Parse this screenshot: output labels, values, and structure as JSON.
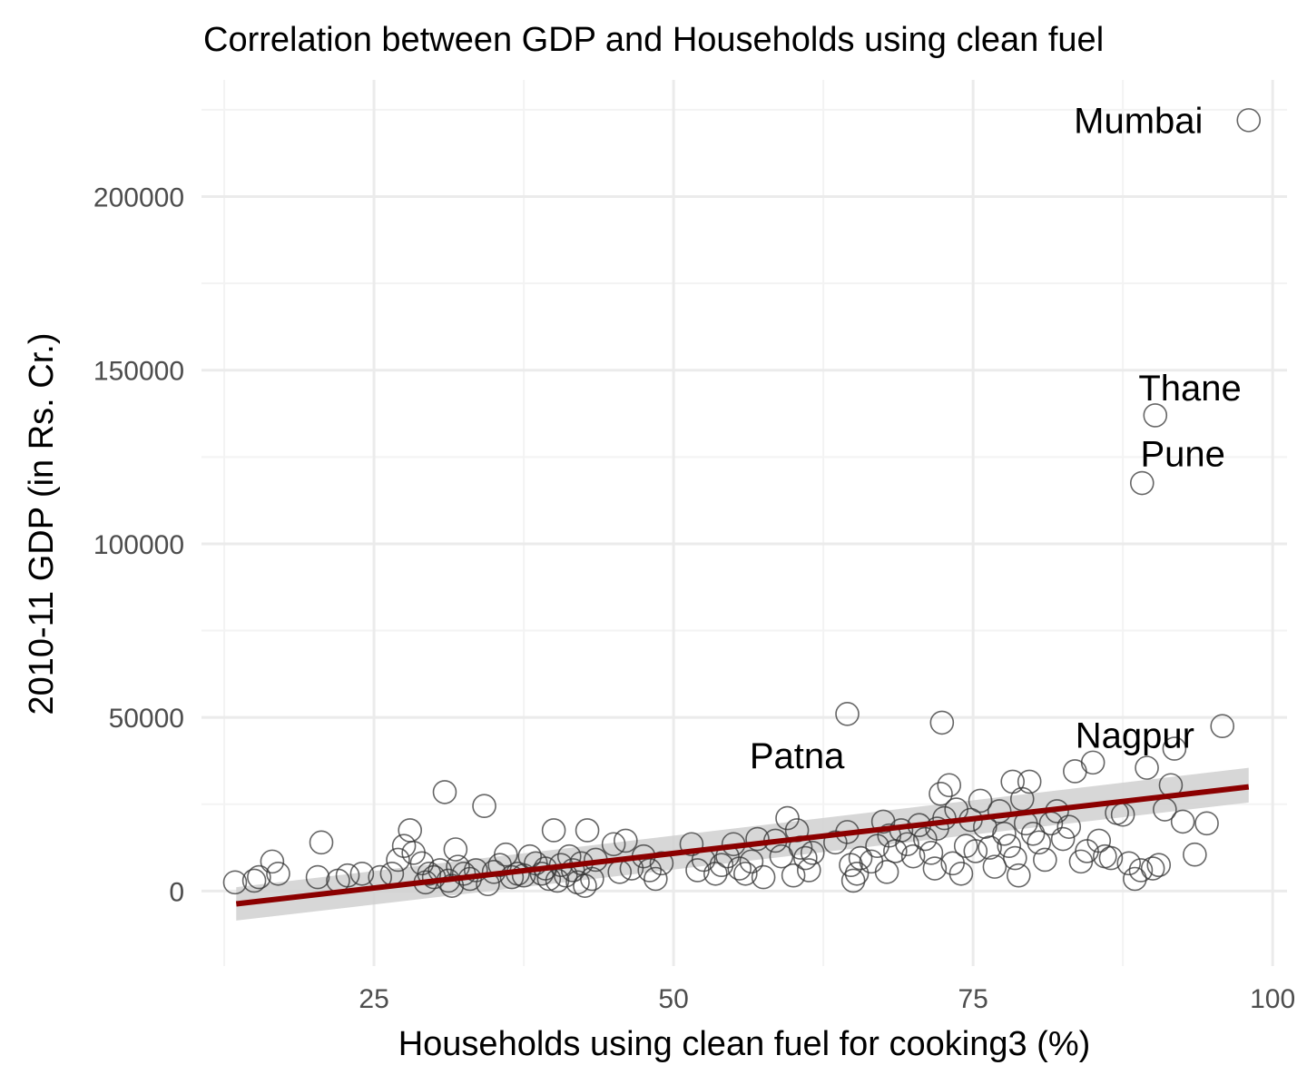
{
  "chart_data": {
    "type": "scatter",
    "title": "Correlation between GDP and Households using clean fuel",
    "xlabel": "Households using clean fuel for cooking3 (%)",
    "ylabel": "2010-11 GDP (in Rs. Cr.)",
    "xlim": [
      10.6,
      101.2
    ],
    "ylim": [
      -21600,
      233600
    ],
    "x_ticks": [
      25,
      50,
      75,
      100
    ],
    "x_tick_labels": [
      "25",
      "50",
      "75",
      "100"
    ],
    "y_ticks": [
      0,
      50000,
      100000,
      150000,
      200000
    ],
    "y_tick_labels": [
      "0",
      "50000",
      "100000",
      "150000",
      "200000"
    ],
    "grid": true,
    "legend": "none",
    "colors": {
      "trend_line": "#8b0000",
      "confidence_band": "#d0d0d0",
      "point_stroke": "#333333"
    },
    "trend_line": {
      "x": [
        13.5,
        98.0
      ],
      "y": [
        -3700,
        30000
      ],
      "ci_lower": [
        -8500,
        25500
      ],
      "ci_upper": [
        1100,
        35500
      ]
    },
    "annotations": [
      {
        "label": "Mumbai",
        "x": 88.8,
        "y": 222000
      },
      {
        "label": "Thane",
        "x": 93.1,
        "y": 145000
      },
      {
        "label": "Pune",
        "x": 92.5,
        "y": 126000
      },
      {
        "label": "Nagpur",
        "x": 88.5,
        "y": 45000
      },
      {
        "label": "Patna",
        "x": 60.3,
        "y": 39000
      }
    ],
    "points": [
      [
        98.0,
        222000
      ],
      [
        90.2,
        137000
      ],
      [
        89.1,
        117500
      ],
      [
        95.8,
        47500
      ],
      [
        64.5,
        51000
      ],
      [
        72.4,
        48500
      ],
      [
        13.4,
        2500
      ],
      [
        15.0,
        3000
      ],
      [
        15.4,
        4000
      ],
      [
        16.5,
        8500
      ],
      [
        17.0,
        5000
      ],
      [
        20.3,
        4000
      ],
      [
        20.6,
        14000
      ],
      [
        22.0,
        3000
      ],
      [
        22.8,
        4500
      ],
      [
        24.0,
        5000
      ],
      [
        25.5,
        4000
      ],
      [
        26.5,
        5000
      ],
      [
        27.0,
        9000
      ],
      [
        27.5,
        13000
      ],
      [
        28.0,
        17500
      ],
      [
        28.3,
        11000
      ],
      [
        29.0,
        8000
      ],
      [
        29.3,
        2500
      ],
      [
        29.6,
        5000
      ],
      [
        30.0,
        4000
      ],
      [
        30.5,
        6000
      ],
      [
        30.9,
        28500
      ],
      [
        31.2,
        3000
      ],
      [
        31.5,
        1500
      ],
      [
        31.8,
        12000
      ],
      [
        32.0,
        7000
      ],
      [
        32.5,
        5000
      ],
      [
        33.0,
        3500
      ],
      [
        33.5,
        6000
      ],
      [
        34.2,
        24500
      ],
      [
        34.5,
        2000
      ],
      [
        35.0,
        5500
      ],
      [
        35.5,
        7500
      ],
      [
        36.0,
        10500
      ],
      [
        36.5,
        4000
      ],
      [
        37.0,
        5000
      ],
      [
        37.5,
        4500
      ],
      [
        38.0,
        10000
      ],
      [
        38.5,
        8000
      ],
      [
        39.0,
        5000
      ],
      [
        39.3,
        6500
      ],
      [
        39.6,
        3500
      ],
      [
        40.0,
        17500
      ],
      [
        40.3,
        3000
      ],
      [
        40.6,
        7500
      ],
      [
        41.0,
        4500
      ],
      [
        41.3,
        10000
      ],
      [
        41.6,
        6000
      ],
      [
        42.0,
        2500
      ],
      [
        42.3,
        8000
      ],
      [
        42.6,
        1500
      ],
      [
        42.8,
        17500
      ],
      [
        43.2,
        3500
      ],
      [
        43.5,
        9000
      ],
      [
        45.0,
        13500
      ],
      [
        45.5,
        5500
      ],
      [
        46.0,
        14500
      ],
      [
        46.5,
        6500
      ],
      [
        47.5,
        10000
      ],
      [
        48.0,
        6000
      ],
      [
        48.5,
        3500
      ],
      [
        49.0,
        8000
      ],
      [
        51.5,
        13500
      ],
      [
        52.0,
        6000
      ],
      [
        52.5,
        9000
      ],
      [
        53.5,
        5000
      ],
      [
        54.0,
        7500
      ],
      [
        54.5,
        10000
      ],
      [
        55.0,
        13500
      ],
      [
        55.5,
        6500
      ],
      [
        56.0,
        5000
      ],
      [
        56.5,
        8500
      ],
      [
        57.0,
        15000
      ],
      [
        57.5,
        4000
      ],
      [
        58.5,
        14500
      ],
      [
        59.0,
        10000
      ],
      [
        59.5,
        21000
      ],
      [
        60.0,
        4500
      ],
      [
        60.3,
        17500
      ],
      [
        60.6,
        12500
      ],
      [
        61.0,
        9500
      ],
      [
        61.3,
        6000
      ],
      [
        61.6,
        11000
      ],
      [
        63.5,
        14000
      ],
      [
        64.5,
        17000
      ],
      [
        64.8,
        7500
      ],
      [
        65.0,
        3000
      ],
      [
        65.3,
        5000
      ],
      [
        65.6,
        9500
      ],
      [
        66.5,
        8500
      ],
      [
        67.0,
        13000
      ],
      [
        67.5,
        20000
      ],
      [
        67.8,
        5500
      ],
      [
        68.0,
        16000
      ],
      [
        68.5,
        11500
      ],
      [
        69.0,
        17500
      ],
      [
        69.5,
        13500
      ],
      [
        70.0,
        10000
      ],
      [
        70.5,
        19000
      ],
      [
        71.0,
        15000
      ],
      [
        71.5,
        11000
      ],
      [
        71.8,
        6500
      ],
      [
        72.0,
        18000
      ],
      [
        72.3,
        28000
      ],
      [
        72.6,
        21000
      ],
      [
        73.0,
        30500
      ],
      [
        73.3,
        8000
      ],
      [
        73.6,
        23500
      ],
      [
        74.0,
        5000
      ],
      [
        74.4,
        13000
      ],
      [
        74.8,
        20500
      ],
      [
        75.2,
        11500
      ],
      [
        75.6,
        26000
      ],
      [
        76.0,
        18500
      ],
      [
        76.4,
        12500
      ],
      [
        76.8,
        7000
      ],
      [
        77.2,
        23000
      ],
      [
        77.6,
        16500
      ],
      [
        78.0,
        13000
      ],
      [
        78.3,
        31500
      ],
      [
        78.5,
        9500
      ],
      [
        78.8,
        4500
      ],
      [
        79.1,
        26500
      ],
      [
        79.4,
        19500
      ],
      [
        79.7,
        31500
      ],
      [
        80.0,
        16500
      ],
      [
        80.5,
        14000
      ],
      [
        81.0,
        9000
      ],
      [
        81.5,
        19500
      ],
      [
        82.0,
        23000
      ],
      [
        82.5,
        15000
      ],
      [
        83.0,
        18500
      ],
      [
        83.5,
        34500
      ],
      [
        84.0,
        8500
      ],
      [
        84.5,
        11500
      ],
      [
        85.0,
        37000
      ],
      [
        85.5,
        14500
      ],
      [
        86.0,
        10000
      ],
      [
        86.5,
        9500
      ],
      [
        87.0,
        22500
      ],
      [
        87.5,
        22000
      ],
      [
        88.0,
        8000
      ],
      [
        88.5,
        3500
      ],
      [
        89.0,
        6000
      ],
      [
        89.5,
        35500
      ],
      [
        90.0,
        6500
      ],
      [
        90.5,
        7500
      ],
      [
        91.0,
        23500
      ],
      [
        91.5,
        30500
      ],
      [
        91.8,
        41000
      ],
      [
        92.5,
        20000
      ],
      [
        93.5,
        10500
      ],
      [
        94.5,
        19500
      ]
    ]
  }
}
